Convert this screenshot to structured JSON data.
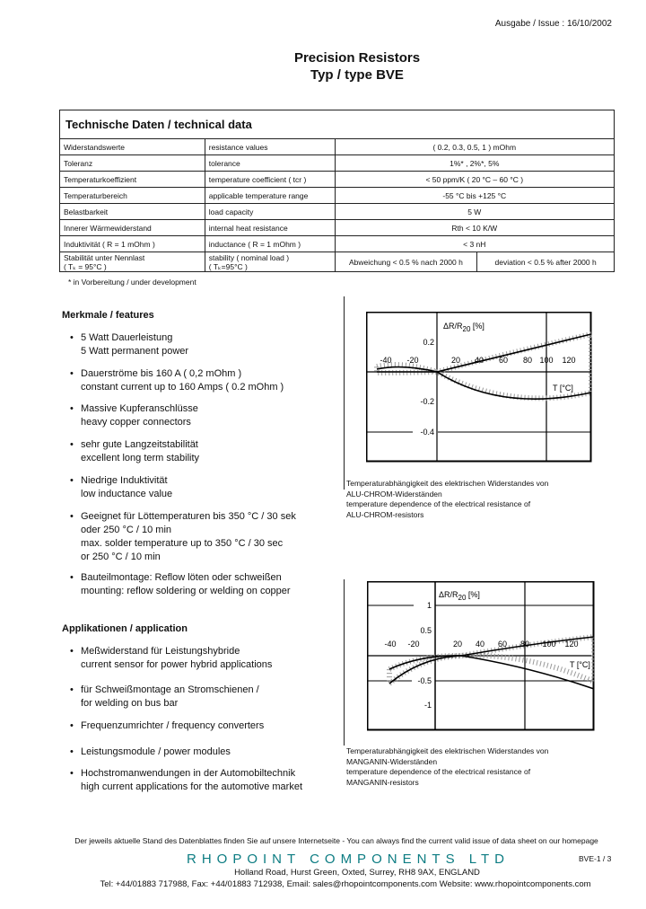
{
  "header": {
    "issue": "Ausgabe / Issue : 16/10/2002",
    "title": "Precision Resistors",
    "subtitle": "Typ / type BVE"
  },
  "table": {
    "title": "Technische Daten / technical data",
    "rows": [
      {
        "de": "Widerstandswerte",
        "en": "resistance values",
        "value": "( 0.2, 0.3, 0.5, 1 ) mOhm"
      },
      {
        "de": "Toleranz",
        "en": "tolerance",
        "value": "1%* , 2%*, 5%"
      },
      {
        "de": "Temperaturkoeffizient",
        "en": "temperature coefficient ( tcr )",
        "value": "< 50 ppm/K ( 20 °C – 60 °C )"
      },
      {
        "de": "Temperaturbereich",
        "en": "applicable temperature range",
        "value": "-55 °C bis +125 °C"
      },
      {
        "de": "Belastbarkeit",
        "en": "load capacity",
        "value": "5 W"
      },
      {
        "de": "Innerer Wärmewiderstand",
        "en": "internal heat resistance",
        "value": "Rth < 10 K/W"
      },
      {
        "de": "Induktivität ( R = 1 mOhm )",
        "en": "inductance ( R = 1 mOhm )",
        "value": "< 3 nH"
      }
    ],
    "stability": {
      "de": "Stabilität unter Nennlast",
      "de2": "( Tₖ = 95°C )",
      "en": "stability ( nominal load )",
      "en2": "( Tₖ=95°C )",
      "value_de": "Abweichung < 0.5 % nach 2000 h",
      "value_en": "deviation < 0.5 % after 2000 h"
    },
    "footnote": "* in Vorbereitung / under development"
  },
  "features": {
    "heading": "Merkmale / features",
    "items": [
      [
        "5 Watt Dauerleistung",
        "5 Watt permanent power"
      ],
      [
        "Dauerströme bis 160 A ( 0,2 mOhm )",
        "constant current up to 160 Amps ( 0.2 mOhm )"
      ],
      [
        "Massive Kupferanschlüsse",
        "heavy copper connectors"
      ],
      [
        "sehr gute Langzeitstabilität",
        "excellent long term stability"
      ],
      [
        "Niedrige Induktivität",
        "low inductance value"
      ],
      [
        "Geeignet für Löttemperaturen bis 350 °C / 30 sek",
        "oder 250 °C / 10 min",
        "max. solder temperature up to 350 °C / 30 sec",
        "or 250 °C / 10 min"
      ],
      [
        "Bauteilmontage: Reflow löten oder schweißen",
        "mounting: reflow soldering or welding on copper"
      ]
    ]
  },
  "applications": {
    "heading": "Applikationen / application",
    "items": [
      [
        "Meßwiderstand für Leistungshybride",
        "current sensor for power hybrid applications"
      ],
      [
        "für Schweißmontage an Stromschienen /",
        "for welding on bus bar"
      ],
      [
        "Frequenzumrichter / frequency converters"
      ],
      [
        "Leistungsmodule / power modules"
      ],
      [
        "Hochstromanwendungen in der Automobiltechnik",
        "high current applications for the automotive market"
      ]
    ]
  },
  "chart1": {
    "ylabel": "ΔR/R",
    "ysub": "20",
    "yunit": " [%]",
    "xlabel": "T [°C]",
    "xticks": [
      "-40",
      "-20",
      "20",
      "40",
      "60",
      "80",
      "100",
      "120"
    ],
    "yticks": [
      "0.2",
      "-0.2",
      "-0.4"
    ],
    "caption": [
      "Temperaturabhängigkeit des elektrischen Widerstandes von",
      "ALU-CHROM-Widerständen",
      "temperature dependence of the electrical resistance of",
      "ALU-CHROM-resistors"
    ]
  },
  "chart2": {
    "ylabel": "ΔR/R",
    "ysub": "20",
    "yunit": " [%]",
    "xlabel": "T [°C]",
    "xticks": [
      "-40",
      "-20",
      "20",
      "40",
      "60",
      "80",
      "100",
      "120"
    ],
    "yticks": [
      "1",
      "0.5",
      "-0.5",
      "-1"
    ],
    "caption": [
      "Temperaturabhängigkeit des elektrischen Widerstandes von",
      "MANGANIN-Widerständen",
      "temperature dependence of the electrical resistance of",
      "MANGANIN-resistors"
    ]
  },
  "footer": {
    "notice": "Der jeweils aktuelle Stand des Datenblattes finden Sie auf unsere Internetseite - You can always find the current valid issue of  data sheet  on our homepage",
    "company": "RHOPOINT COMPONENTS LTD",
    "page": "BVE-1 / 3",
    "address": "Holland Road, Hurst Green, Oxted, Surrey, RH8 9AX, ENGLAND",
    "contact": "Tel: +44/01883 717988, Fax: +44/01883 712938, Email: sales@rhopointcomponents.com Website: www.rhopointcomponents.com",
    "brand_color": "#0c7c82"
  }
}
